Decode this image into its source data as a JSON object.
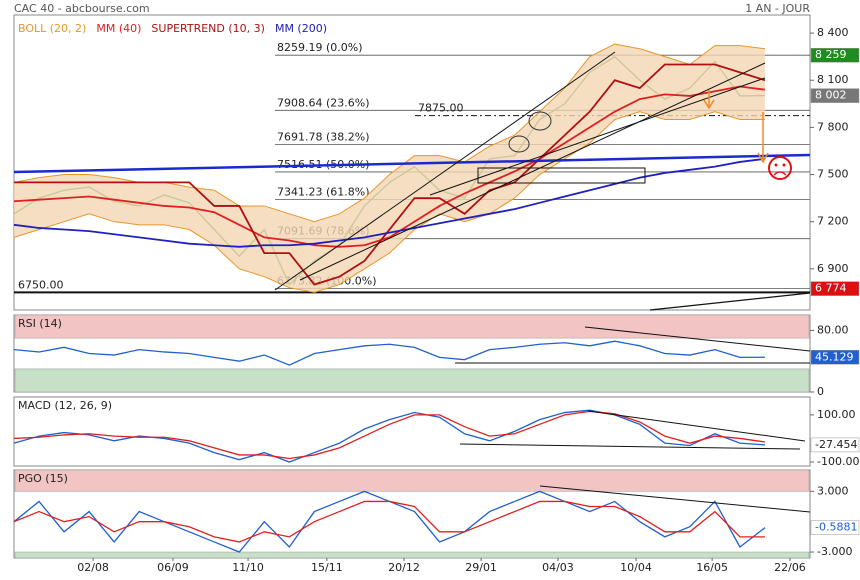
{
  "header": {
    "title": "CAC 40 - abcbourse.com",
    "period": "1 AN - JOUR"
  },
  "chart_data": [
    {
      "type": "line",
      "x": [
        0,
        1,
        2,
        3,
        4,
        5,
        6,
        7,
        8,
        9,
        10,
        11,
        12,
        13,
        14,
        15,
        16,
        17,
        18,
        19,
        20,
        21,
        22,
        23,
        24,
        25,
        26,
        27,
        28,
        29,
        30
      ],
      "xlim": [
        0,
        31.8
      ],
      "ylim": [
        6638,
        8515
      ],
      "yticks": [
        {
          "value": 8400,
          "label": "8 400"
        },
        {
          "value": 8100,
          "label": "8 100"
        },
        {
          "value": 7800,
          "label": "7 800"
        },
        {
          "value": 7500,
          "label": "7 500"
        },
        {
          "value": 7200,
          "label": "7 200"
        },
        {
          "value": 6900,
          "label": "6 900"
        }
      ],
      "series": [
        {
          "color": "#2a8a2a",
          "values": [
            7250,
            7350,
            7400,
            7420,
            7330,
            7300,
            7370,
            7320,
            7150,
            6980,
            7150,
            6800,
            6950,
            7050,
            7300,
            7450,
            7550,
            7400,
            7350,
            7600,
            7620,
            7850,
            7950,
            8150,
            8250,
            8100,
            7980,
            8050,
            8220,
            8000,
            8002
          ]
        },
        {
          "name": "BOLL (20, 2)",
          "color": "#e8962a",
          "upper": [
            7450,
            7480,
            7500,
            7500,
            7480,
            7450,
            7450,
            7420,
            7400,
            7300,
            7300,
            7250,
            7200,
            7250,
            7350,
            7500,
            7620,
            7620,
            7580,
            7680,
            7750,
            7900,
            8050,
            8250,
            8330,
            8300,
            8250,
            8200,
            8320,
            8320,
            8300
          ],
          "lower": [
            7100,
            7150,
            7200,
            7250,
            7200,
            7180,
            7180,
            7150,
            7050,
            6900,
            6850,
            6780,
            6750,
            6800,
            6900,
            7000,
            7150,
            7250,
            7200,
            7250,
            7350,
            7500,
            7600,
            7700,
            7850,
            7900,
            7850,
            7850,
            7900,
            7850,
            7850
          ]
        },
        {
          "name": "MM (40)",
          "color": "#e02020",
          "values": [
            7330,
            7340,
            7350,
            7360,
            7340,
            7320,
            7300,
            7290,
            7260,
            7180,
            7100,
            7080,
            7050,
            7040,
            7050,
            7100,
            7200,
            7300,
            7380,
            7450,
            7520,
            7600,
            7700,
            7800,
            7900,
            7980,
            8010,
            8000,
            8030,
            8060,
            8040
          ]
        },
        {
          "name": "SUPERTREND (10, 3)",
          "color": "#b01010",
          "values": [
            7450,
            7450,
            7450,
            7450,
            7450,
            7450,
            7450,
            7450,
            7300,
            7300,
            7000,
            7000,
            6800,
            6850,
            6950,
            7150,
            7350,
            7350,
            7250,
            7400,
            7450,
            7600,
            7750,
            7900,
            8100,
            8050,
            8200,
            8200,
            8200,
            8150,
            8100
          ]
        },
        {
          "name": "MM (200)",
          "color": "#2020c0",
          "values": [
            7180,
            7160,
            7150,
            7140,
            7120,
            7100,
            7080,
            7060,
            7050,
            7040,
            7050,
            7050,
            7060,
            7080,
            7100,
            7130,
            7160,
            7190,
            7220,
            7250,
            7280,
            7320,
            7360,
            7400,
            7440,
            7480,
            7510,
            7530,
            7550,
            7580,
            7600
          ]
        }
      ],
      "fib_levels": [
        {
          "value": 8259.19,
          "label": "8259.19 (0.0%)"
        },
        {
          "value": 7908.64,
          "label": "7908.64 (23.6%)"
        },
        {
          "value": 7691.78,
          "label": "7691.78 (38.2%)"
        },
        {
          "value": 7516.51,
          "label": "7516.51 (50.0%)"
        },
        {
          "value": 7341.23,
          "label": "7341.23 (61.8%)"
        },
        {
          "value": 7091.69,
          "label": "7091.69 (78.6%)"
        },
        {
          "value": 6773.82,
          "label": "6773.82 (100.0%)"
        }
      ],
      "hlines": [
        {
          "value": 6750,
          "label": "6750.00",
          "style": "solid"
        },
        {
          "value": 7875,
          "label": "7875.00",
          "style": "dashed"
        }
      ],
      "badges": [
        {
          "value": 8259,
          "label": "8 259",
          "color": "#1e8c1e",
          "text_color": "#ffffff"
        },
        {
          "value": 8002,
          "label": "8 002",
          "color": "#777777",
          "text_color": "#ffffff"
        },
        {
          "value": 6774,
          "label": "6 774",
          "color": "#dd1010",
          "text_color": "#ffffff"
        }
      ]
    },
    {
      "type": "line",
      "title": "RSI (14)",
      "x": [
        0,
        1,
        2,
        3,
        4,
        5,
        6,
        7,
        8,
        9,
        10,
        11,
        12,
        13,
        14,
        15,
        16,
        17,
        18,
        19,
        20,
        21,
        22,
        23,
        24,
        25,
        26,
        27,
        28,
        29,
        30
      ],
      "xlim": [
        0,
        31.8
      ],
      "ylim": [
        0,
        100
      ],
      "yticks": [
        {
          "value": 80,
          "label": "80.00"
        },
        0
      ],
      "zones": [
        {
          "from": 70,
          "color": "#f2c4c4"
        },
        {
          "to": 30,
          "color": "#c8dfc8"
        }
      ],
      "series": [
        {
          "color": "#2060d0",
          "values": [
            55,
            52,
            58,
            50,
            48,
            55,
            52,
            50,
            45,
            40,
            48,
            35,
            50,
            55,
            60,
            62,
            58,
            45,
            42,
            55,
            58,
            62,
            64,
            60,
            66,
            60,
            50,
            48,
            55,
            45,
            45.129
          ]
        }
      ],
      "badges": [
        {
          "value": 45.129,
          "label": "45.129",
          "color": "#2060d0",
          "text_color": "#ffffff"
        }
      ]
    },
    {
      "type": "line",
      "title": "MACD (12, 26, 9)",
      "x": [
        0,
        1,
        2,
        3,
        4,
        5,
        6,
        7,
        8,
        9,
        10,
        11,
        12,
        13,
        14,
        15,
        16,
        17,
        18,
        19,
        20,
        21,
        22,
        23,
        24,
        25,
        26,
        27,
        28,
        29,
        30
      ],
      "xlim": [
        0,
        31.8
      ],
      "ylim": [
        -117,
        176
      ],
      "yticks": [
        {
          "value": 100,
          "label": "100.00"
        },
        {
          "value": -100,
          "label": "-100.00"
        }
      ],
      "series": [
        {
          "color": "#2060d0",
          "values": [
            -20,
            10,
            25,
            15,
            -10,
            10,
            0,
            -20,
            -60,
            -90,
            -60,
            -100,
            -60,
            -20,
            40,
            80,
            110,
            90,
            20,
            -10,
            30,
            80,
            110,
            120,
            100,
            60,
            -20,
            -30,
            20,
            -20,
            -27.454
          ]
        },
        {
          "color": "#e02020",
          "values": [
            0,
            5,
            15,
            20,
            10,
            5,
            5,
            -10,
            -40,
            -70,
            -70,
            -85,
            -70,
            -40,
            10,
            60,
            100,
            100,
            50,
            10,
            20,
            60,
            100,
            115,
            105,
            70,
            10,
            -20,
            10,
            0,
            -15
          ]
        }
      ],
      "badges": [
        {
          "value": -27.454,
          "label": "-27.454",
          "color": "#ffffff",
          "text_color": "#222222"
        }
      ]
    },
    {
      "type": "line",
      "title": "PGO (15)",
      "x": [
        0,
        1,
        2,
        3,
        4,
        5,
        6,
        7,
        8,
        9,
        10,
        11,
        12,
        13,
        14,
        15,
        16,
        17,
        18,
        19,
        20,
        21,
        22,
        23,
        24,
        25,
        26,
        27,
        28,
        29,
        30
      ],
      "xlim": [
        0,
        31.8
      ],
      "ylim": [
        -3.59,
        5.11
      ],
      "yticks": [
        {
          "value": 3,
          "label": "3.000"
        },
        {
          "value": -3,
          "label": "-3.000"
        }
      ],
      "zones": [
        {
          "from": 3,
          "color": "#f2c4c4"
        },
        {
          "to": -3,
          "color": "#c8dfc8"
        }
      ],
      "xticks": [
        {
          "value": 3.16,
          "label": "02/08"
        },
        {
          "value": 6.35,
          "label": "06/09"
        },
        {
          "value": 9.35,
          "label": "11/10"
        },
        {
          "value": 12.5,
          "label": "15/11"
        },
        {
          "value": 15.58,
          "label": "20/12"
        },
        {
          "value": 18.66,
          "label": "29/01"
        },
        {
          "value": 21.73,
          "label": "04/03"
        },
        {
          "value": 24.85,
          "label": "10/04"
        },
        {
          "value": 27.89,
          "label": "16/05"
        },
        {
          "value": 31.0,
          "label": "22/06"
        }
      ],
      "series": [
        {
          "color": "#2060d0",
          "values": [
            0,
            2,
            -1,
            1,
            -2,
            1,
            0,
            -1,
            -2,
            -3,
            0,
            -2.5,
            1,
            2,
            3,
            2,
            1,
            -2,
            -1,
            1,
            2,
            3,
            2,
            1,
            2,
            0,
            -1.5,
            -0.5,
            2,
            -2.5,
            -0.5881
          ]
        },
        {
          "color": "#e02020",
          "values": [
            0,
            1,
            0,
            0.5,
            -1,
            0,
            0,
            -0.5,
            -1.5,
            -2,
            -1,
            -1.5,
            0,
            1,
            2,
            2,
            1.5,
            -1,
            -1,
            0,
            1,
            2,
            2,
            1.5,
            1.5,
            0.5,
            -1,
            -1,
            1,
            -1.5,
            -1.5
          ]
        }
      ],
      "badges": [
        {
          "value": -0.5881,
          "label": "-0.5881",
          "color": "#ffffff",
          "text_color": "#2060d0"
        }
      ]
    }
  ]
}
